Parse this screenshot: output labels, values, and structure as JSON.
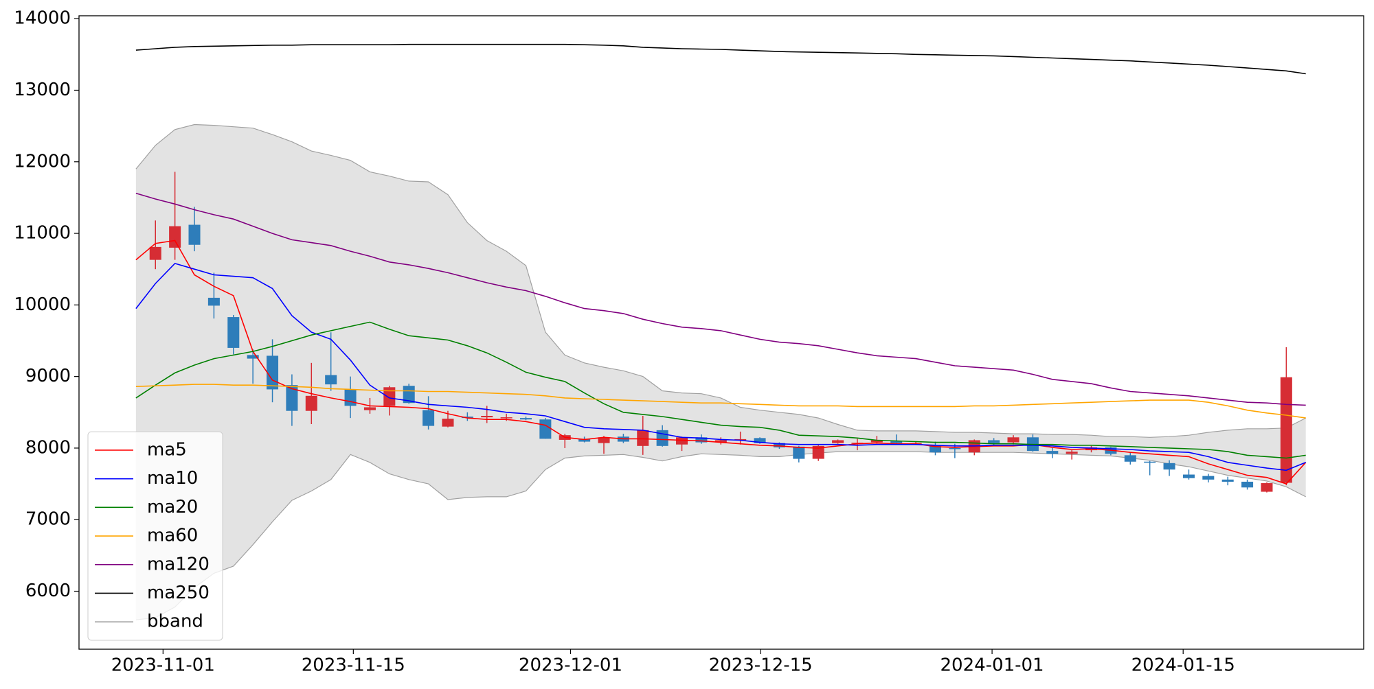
{
  "chart_data": {
    "type": "candlestick",
    "xlim": [
      -2.92,
      62.97
    ],
    "xticks": [
      {
        "value": 1.39,
        "label": "2023-11-01"
      },
      {
        "value": 11.15,
        "label": "2023-11-15"
      },
      {
        "value": 22.29,
        "label": "2023-12-01"
      },
      {
        "value": 32.04,
        "label": "2023-12-15"
      },
      {
        "value": 43.91,
        "label": "2024-01-01"
      },
      {
        "value": 53.71,
        "label": "2024-01-15"
      }
    ],
    "ylim": [
      5190,
      14040
    ],
    "yticks": [
      6000,
      7000,
      8000,
      9000,
      10000,
      11000,
      12000,
      13000,
      14000
    ],
    "legend": "lower left",
    "up_color": "#d62d34",
    "down_color": "#2e7dba",
    "open": [
      null,
      10630,
      10800,
      11120,
      10100,
      9830,
      9300,
      9290,
      8880,
      8520,
      9020,
      8820,
      8530,
      8590,
      8870,
      8530,
      8300,
      8440,
      8430,
      8420,
      8420,
      8400,
      8115,
      8130,
      8070,
      8160,
      8030,
      8250,
      8050,
      8150,
      8080,
      8120,
      8140,
      8070,
      8020,
      7850,
      8070,
      8070,
      8080,
      8100,
      8060,
      8040,
      8000,
      7940,
      8110,
      8080,
      8150,
      7960,
      7920,
      7970,
      8010,
      7900,
      7810,
      7790,
      7630,
      7610,
      7560,
      7530,
      7390,
      7515,
      null
    ],
    "high": [
      null,
      11180,
      11860,
      11370,
      10450,
      9860,
      9380,
      9520,
      9030,
      9190,
      9617,
      9000,
      8700,
      8870,
      8900,
      8725,
      8520,
      8500,
      8590,
      8480,
      8440,
      8420,
      8200,
      8160,
      8170,
      8200,
      8450,
      8320,
      8160,
      8190,
      8150,
      8230,
      8150,
      8080,
      8030,
      8040,
      8120,
      8130,
      8170,
      8190,
      8090,
      8090,
      8060,
      8120,
      8140,
      8180,
      8190,
      8000,
      7970,
      8030,
      8020,
      7940,
      7820,
      7830,
      7700,
      7640,
      7600,
      7560,
      7520,
      9410,
      null
    ],
    "low": [
      null,
      10500,
      10630,
      10750,
      9810,
      9310,
      8900,
      8640,
      8310,
      8335,
      8800,
      8420,
      8480,
      8455,
      8620,
      8260,
      8290,
      8380,
      8350,
      8380,
      8390,
      8130,
      8000,
      8080,
      7920,
      8070,
      7905,
      8020,
      7960,
      8060,
      8050,
      8050,
      8060,
      7990,
      7800,
      7820,
      8060,
      7970,
      8060,
      8050,
      8050,
      7900,
      7860,
      7900,
      8030,
      8050,
      7950,
      7860,
      7840,
      7940,
      7900,
      7770,
      7620,
      7610,
      7560,
      7520,
      7480,
      7420,
      7380,
      7480,
      null
    ],
    "close": [
      null,
      10810,
      11100,
      10840,
      9990,
      9400,
      9250,
      8820,
      8520,
      8730,
      8890,
      8590,
      8570,
      8850,
      8630,
      8310,
      8410,
      8420,
      8450,
      8430,
      8400,
      8130,
      8180,
      8090,
      8150,
      8090,
      8250,
      8030,
      8150,
      8080,
      8110,
      8125,
      8070,
      8010,
      7850,
      8030,
      8110,
      8075,
      8110,
      8070,
      8070,
      7940,
      7990,
      8110,
      8070,
      8150,
      7960,
      7920,
      7950,
      8010,
      7920,
      7810,
      7800,
      7700,
      7580,
      7560,
      7530,
      7450,
      7510,
      8990,
      null
    ],
    "series": [
      {
        "name": "ma5",
        "color": "#ff0000",
        "values": [
          10630,
          10860,
          10900,
          10420,
          10260,
          10130,
          9350,
          8950,
          8830,
          8760,
          8700,
          8650,
          8590,
          8580,
          8570,
          8550,
          8480,
          8420,
          8400,
          8400,
          8370,
          8320,
          8150,
          8120,
          8150,
          8130,
          8130,
          8120,
          8110,
          8100,
          8080,
          8060,
          8040,
          8030,
          8010,
          8000,
          8030,
          8060,
          8070,
          8060,
          8060,
          8020,
          8010,
          8020,
          8030,
          8030,
          8050,
          8010,
          7980,
          7990,
          7970,
          7940,
          7920,
          7900,
          7880,
          7780,
          7700,
          7620,
          7590,
          7500,
          7800
        ]
      },
      {
        "name": "ma10",
        "color": "#0000ff",
        "values": [
          9950,
          10300,
          10580,
          10500,
          10420,
          10400,
          10380,
          10230,
          9850,
          9620,
          9520,
          9230,
          8880,
          8700,
          8660,
          8610,
          8590,
          8570,
          8540,
          8500,
          8480,
          8450,
          8370,
          8290,
          8270,
          8260,
          8250,
          8200,
          8150,
          8140,
          8120,
          8110,
          8080,
          8060,
          8050,
          8050,
          8050,
          8040,
          8050,
          8050,
          8050,
          8040,
          8030,
          8030,
          8040,
          8040,
          8040,
          8030,
          8010,
          8000,
          7990,
          7980,
          7960,
          7950,
          7940,
          7880,
          7800,
          7760,
          7720,
          7690,
          7800
        ]
      },
      {
        "name": "ma20",
        "color": "#008000",
        "values": [
          8700,
          8880,
          9050,
          9160,
          9250,
          9300,
          9350,
          9420,
          9500,
          9580,
          9640,
          9700,
          9760,
          9660,
          9570,
          9540,
          9510,
          9430,
          9330,
          9200,
          9060,
          8990,
          8930,
          8770,
          8620,
          8500,
          8470,
          8440,
          8400,
          8360,
          8320,
          8300,
          8290,
          8250,
          8180,
          8170,
          8160,
          8140,
          8110,
          8100,
          8090,
          8080,
          8080,
          8070,
          8060,
          8060,
          8050,
          8050,
          8040,
          8040,
          8030,
          8020,
          8010,
          8000,
          7990,
          7980,
          7950,
          7900,
          7880,
          7860,
          7900
        ]
      },
      {
        "name": "ma60",
        "color": "#ffa500",
        "values": [
          8860,
          8870,
          8880,
          8890,
          8890,
          8880,
          8880,
          8870,
          8860,
          8850,
          8830,
          8820,
          8810,
          8800,
          8800,
          8790,
          8790,
          8780,
          8770,
          8760,
          8750,
          8730,
          8700,
          8690,
          8680,
          8670,
          8660,
          8650,
          8640,
          8630,
          8630,
          8620,
          8610,
          8600,
          8590,
          8590,
          8590,
          8580,
          8580,
          8580,
          8580,
          8580,
          8580,
          8590,
          8590,
          8600,
          8610,
          8620,
          8630,
          8640,
          8650,
          8660,
          8670,
          8670,
          8670,
          8640,
          8590,
          8530,
          8490,
          8460,
          8420
        ]
      },
      {
        "name": "ma120",
        "color": "#800080",
        "values": [
          11560,
          11480,
          11410,
          11330,
          11260,
          11200,
          11100,
          11000,
          10910,
          10870,
          10830,
          10750,
          10680,
          10600,
          10560,
          10510,
          10450,
          10380,
          10310,
          10250,
          10200,
          10120,
          10030,
          9950,
          9920,
          9880,
          9800,
          9740,
          9690,
          9670,
          9640,
          9580,
          9520,
          9480,
          9460,
          9430,
          9380,
          9330,
          9290,
          9270,
          9250,
          9200,
          9150,
          9130,
          9110,
          9090,
          9030,
          8960,
          8930,
          8900,
          8840,
          8790,
          8770,
          8750,
          8730,
          8700,
          8670,
          8640,
          8630,
          8610,
          8600
        ]
      },
      {
        "name": "ma250",
        "color": "#000000",
        "values": [
          13560,
          13580,
          13600,
          13610,
          13615,
          13620,
          13625,
          13630,
          13630,
          13635,
          13635,
          13635,
          13635,
          13635,
          13640,
          13640,
          13640,
          13640,
          13640,
          13640,
          13640,
          13640,
          13640,
          13635,
          13630,
          13620,
          13600,
          13590,
          13580,
          13575,
          13570,
          13560,
          13550,
          13540,
          13535,
          13530,
          13525,
          13520,
          13515,
          13510,
          13500,
          13495,
          13490,
          13485,
          13480,
          13470,
          13460,
          13450,
          13440,
          13430,
          13420,
          13410,
          13395,
          13380,
          13365,
          13350,
          13330,
          13310,
          13290,
          13270,
          13230
        ]
      }
    ],
    "bband": {
      "name": "bband",
      "color": "#a0a0a0",
      "fill": "#e3e3e3",
      "upper": [
        11900,
        12230,
        12450,
        12520,
        12510,
        12490,
        12470,
        12380,
        12280,
        12150,
        12090,
        12020,
        11860,
        11800,
        11730,
        11720,
        11540,
        11150,
        10900,
        10750,
        10550,
        9620,
        9300,
        9190,
        9130,
        9080,
        9000,
        8800,
        8770,
        8760,
        8700,
        8570,
        8530,
        8500,
        8470,
        8420,
        8330,
        8250,
        8240,
        8240,
        8240,
        8230,
        8220,
        8220,
        8210,
        8200,
        8200,
        8190,
        8190,
        8180,
        8160,
        8160,
        8150,
        8160,
        8180,
        8220,
        8250,
        8270,
        8270,
        8280,
        8420
      ],
      "lower": [
        5600,
        5630,
        5780,
        6050,
        6250,
        6350,
        6650,
        6970,
        7270,
        7400,
        7560,
        7910,
        7800,
        7640,
        7560,
        7500,
        7280,
        7310,
        7320,
        7320,
        7400,
        7700,
        7860,
        7890,
        7900,
        7910,
        7870,
        7820,
        7880,
        7920,
        7910,
        7900,
        7880,
        7880,
        7910,
        7930,
        7950,
        7950,
        7950,
        7950,
        7950,
        7940,
        7940,
        7940,
        7940,
        7940,
        7930,
        7920,
        7910,
        7900,
        7890,
        7860,
        7830,
        7780,
        7740,
        7680,
        7620,
        7580,
        7540,
        7460,
        7320
      ]
    }
  }
}
